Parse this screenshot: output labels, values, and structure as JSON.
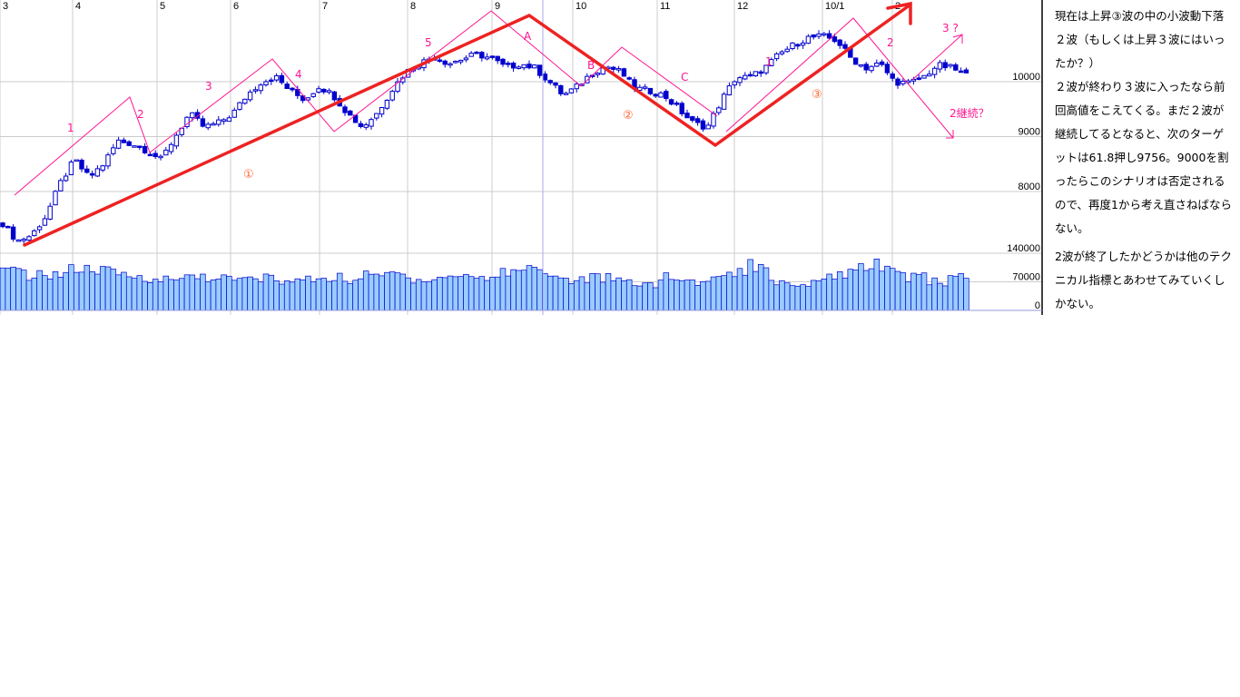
{
  "chart_data": {
    "type": "candlestick",
    "x_tick_labels": [
      "3",
      "4",
      "5",
      "6",
      "7",
      "8",
      "9",
      "10",
      "11",
      "12",
      "10/1",
      "2"
    ],
    "price_axis": {
      "ticks": [
        10000,
        9000,
        8000
      ],
      "labels": [
        "10000",
        "9000",
        "8000"
      ]
    },
    "volume_axis": {
      "ticks": [
        140000,
        70000,
        0
      ],
      "labels": [
        "140000",
        "70000",
        "0"
      ]
    },
    "grid": true,
    "close_path": [
      7420,
      7100,
      7200,
      7550,
      8150,
      8580,
      8250,
      8500,
      8920,
      8870,
      8750,
      8580,
      9000,
      9420,
      9170,
      9250,
      9420,
      9760,
      10000,
      10080,
      9830,
      9670,
      9920,
      9750,
      9420,
      9170,
      9420,
      9830,
      10170,
      10330,
      10470,
      10330,
      10420,
      10500,
      10420,
      10250,
      10330,
      10250,
      10000,
      9750,
      9920,
      10170,
      10280,
      10170,
      9880,
      9830,
      9750,
      9500,
      9250,
      9170,
      9670,
      10080,
      10080,
      10250,
      10500,
      10670,
      10800,
      10830,
      10750,
      10420,
      10250,
      10330,
      10000,
      9970,
      10080,
      10300,
      10250,
      10120
    ],
    "volume_k": [
      95,
      85,
      90,
      100,
      95,
      85,
      80,
      75,
      85,
      80,
      75,
      80,
      70,
      75,
      80,
      75,
      85,
      90,
      75,
      80,
      85,
      80,
      95,
      110,
      85,
      75,
      80,
      70,
      65,
      80,
      70,
      75,
      95,
      110,
      70,
      65,
      85,
      90,
      110,
      95,
      80,
      70,
      80
    ],
    "colors": {
      "candle": "#0000cc",
      "volume_fill": "#99ccff",
      "trend_line": "#ee2222",
      "wave_line": "#ff1493",
      "circle_label": "#ff6633"
    },
    "annotations": {
      "wave1": "1",
      "wave2": "2",
      "wave3": "3",
      "wave4": "4",
      "wave5": "5",
      "a": "A",
      "b": "B",
      "c": "C",
      "sub1": "1",
      "sub2": "2",
      "sub3q": "3 ?",
      "cont2": "2継続？",
      "big1": "①",
      "big2": "②",
      "big3": "③"
    }
  },
  "note": {
    "p1": "現在は上昇③波の中の小波動下落２波（もしくは上昇３波にはいったか？）",
    "p2": "２波が終わり３波に入ったなら前回高値をこえてくる。まだ２波が継続してるとなると、次のターゲットは61.8押し9756。9000を割ったらこのシナリオは否定されるので、再度1から考え直さねばならない。",
    "p3": "2波が終了したかどうかは他のテクニカル指標とあわせてみていくしかない。"
  }
}
